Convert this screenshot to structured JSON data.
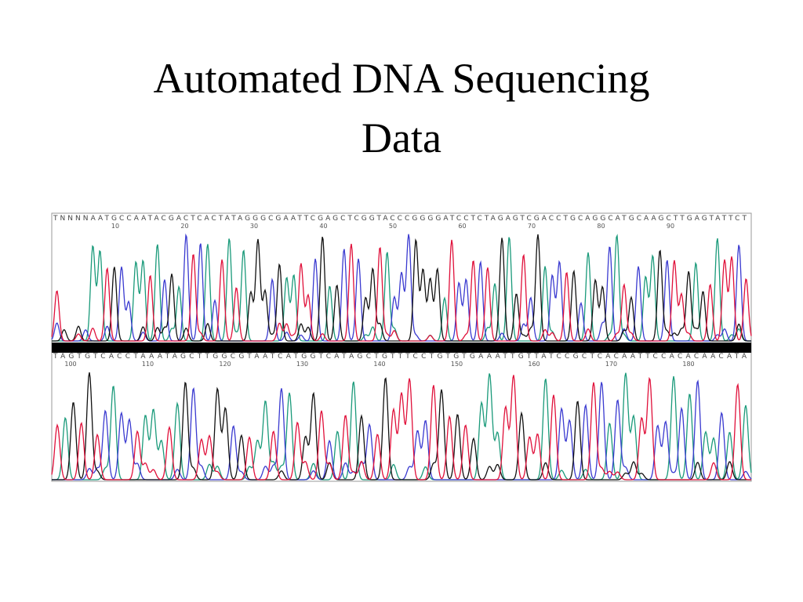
{
  "slide": {
    "title": "Automated DNA Sequencing Data",
    "base_colors": {
      "A": "#1a9a7a",
      "C": "#3a3ad0",
      "G": "#111111",
      "T": "#e0103a",
      "N": "#777777"
    },
    "rows": [
      {
        "sequence": "TNNNNAATGCCAATACGACTCACTATAGGGCGAATTCGAGCTCGGTACCCGGGGATCCTCTAGAGTCGACCTGCAGGCATGCAAGCTTGAGTATTCT",
        "positions": [
          "10",
          "20",
          "30",
          "40",
          "50",
          "60",
          "70",
          "80",
          "90"
        ]
      },
      {
        "sequence": "TAGTGTCACCTAAATAGCTTGGCGTAATCATGGTCATAGCTGTTTCCTGTGTGAAATTGTTATCCGCTCACAATTCCACACAACATA",
        "positions": [
          "100",
          "110",
          "120",
          "130",
          "140",
          "150",
          "160",
          "170",
          "180"
        ]
      }
    ]
  }
}
